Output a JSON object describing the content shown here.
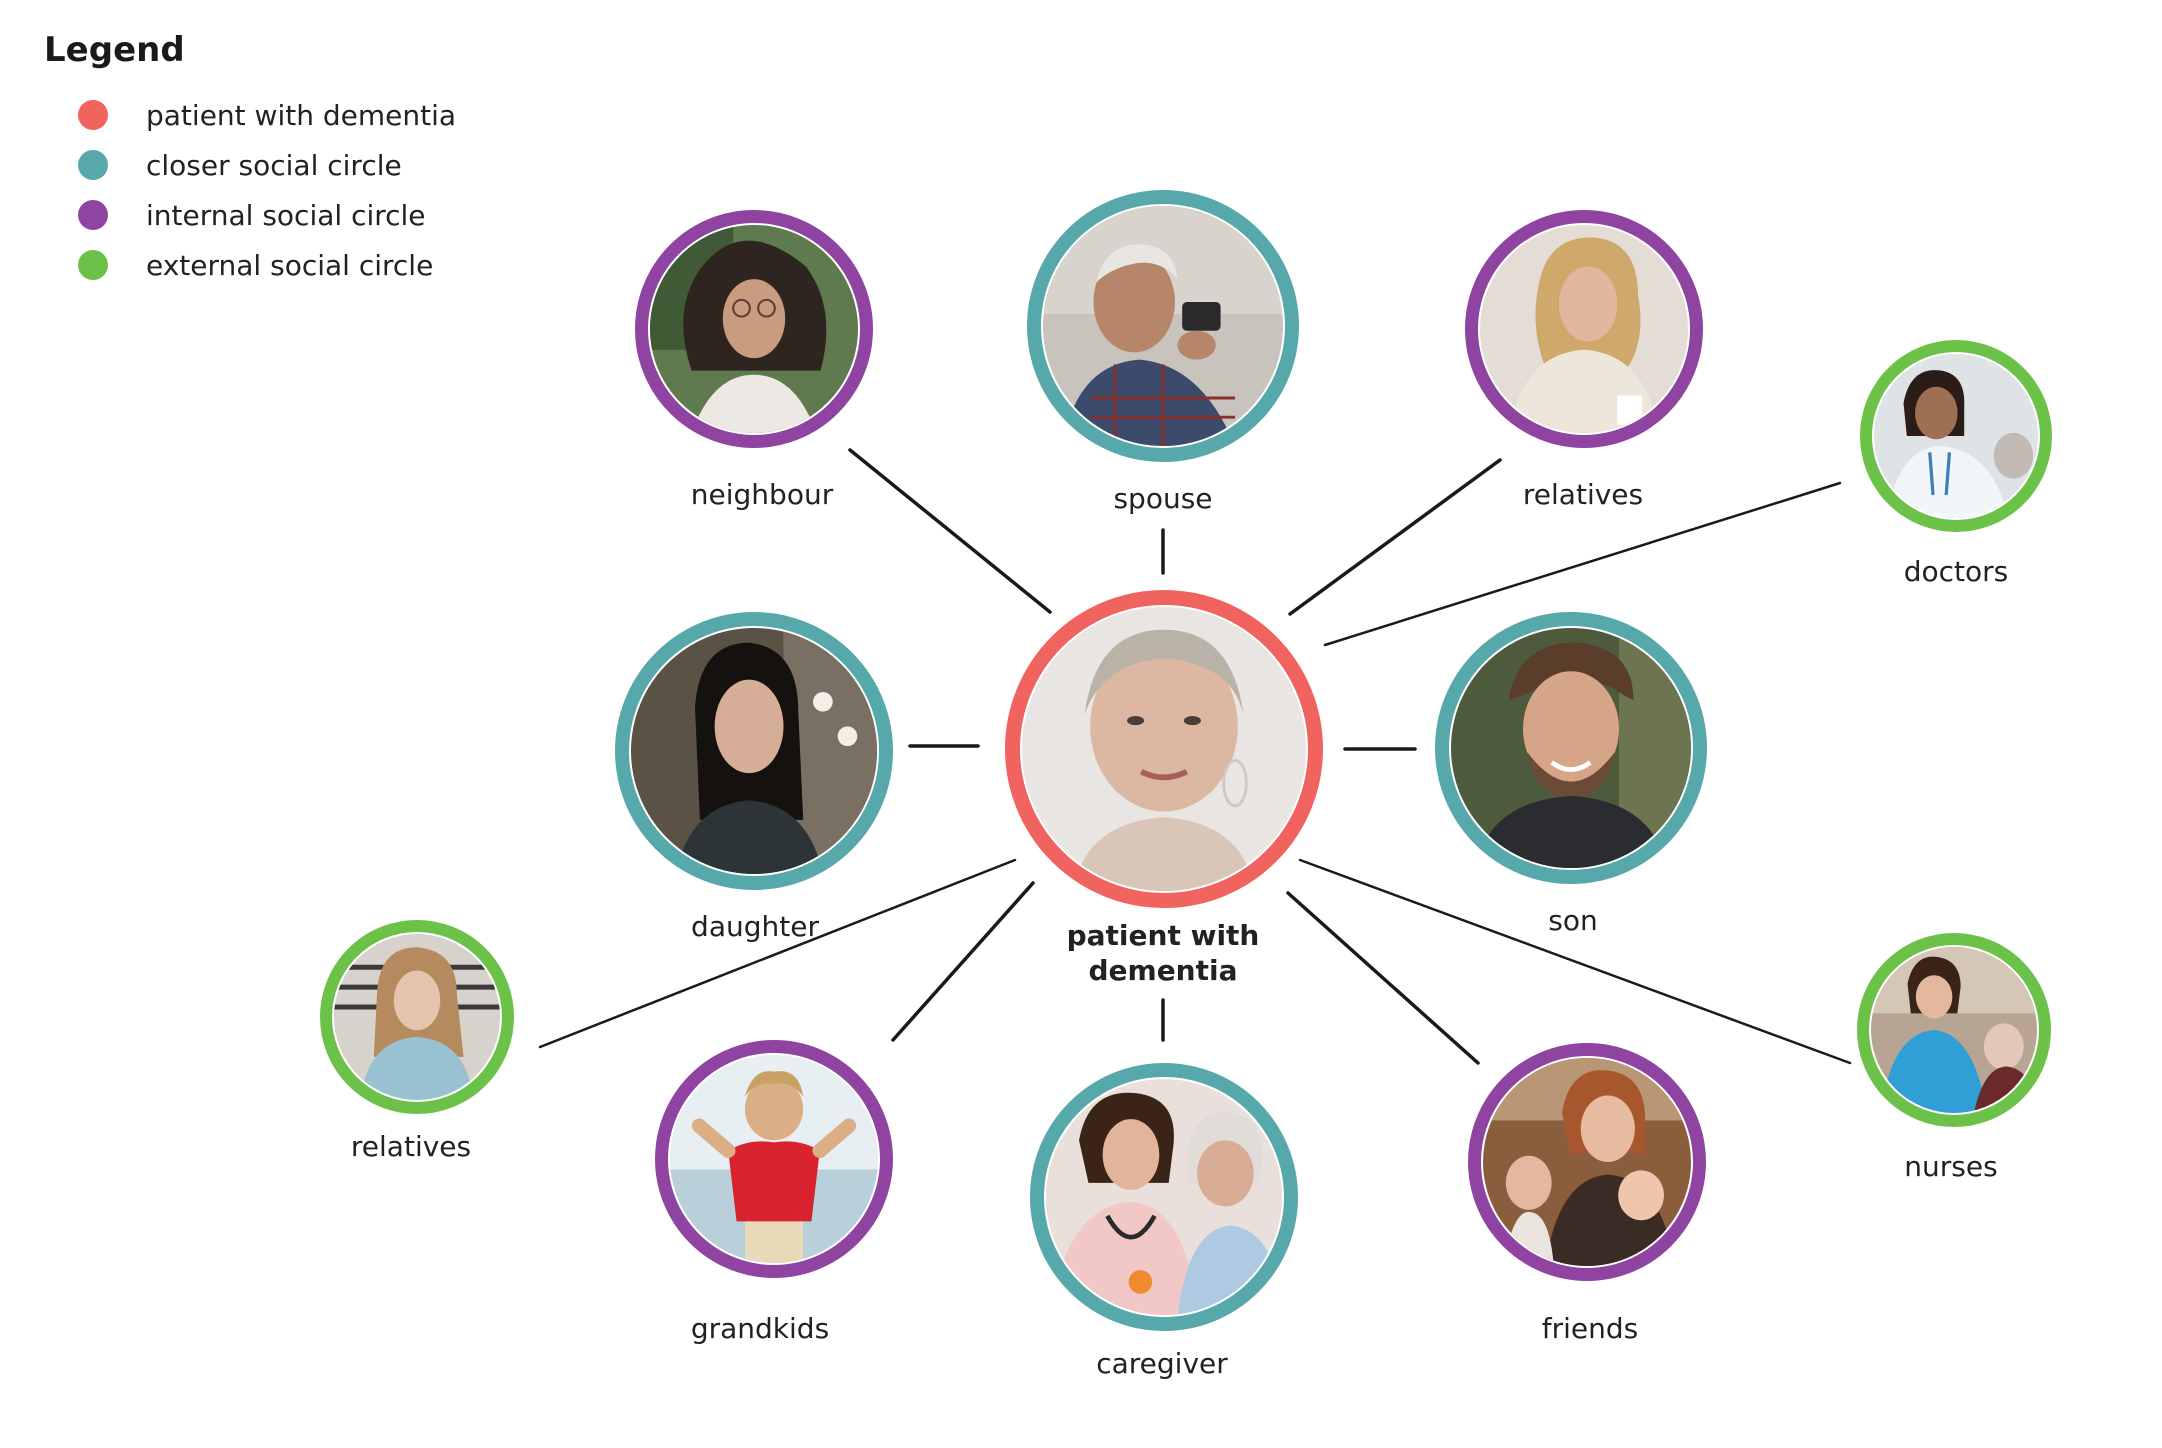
{
  "legend": {
    "title": "Legend",
    "items": [
      {
        "label": "patient with dementia",
        "color": "#f0635e"
      },
      {
        "label": "closer social circle",
        "color": "#57a8aa"
      },
      {
        "label": "internal social circle",
        "color": "#8e44a0"
      },
      {
        "label": "external social circle",
        "color": "#6cc149"
      }
    ]
  },
  "nodes": {
    "center": {
      "label": "patient with dementia",
      "circle": "patient with dementia"
    },
    "neighbour": {
      "label": "neighbour",
      "circle": "internal social circle"
    },
    "spouse": {
      "label": "spouse",
      "circle": "closer social circle"
    },
    "relatives_top": {
      "label": "relatives",
      "circle": "internal social circle"
    },
    "doctors": {
      "label": "doctors",
      "circle": "external social circle"
    },
    "daughter": {
      "label": "daughter",
      "circle": "closer social circle"
    },
    "son": {
      "label": "son",
      "circle": "closer social circle"
    },
    "relatives_left": {
      "label": "relatives",
      "circle": "external social circle"
    },
    "grandkids": {
      "label": "grandkids",
      "circle": "internal social circle"
    },
    "caregiver": {
      "label": "caregiver",
      "circle": "closer social circle"
    },
    "friends": {
      "label": "friends",
      "circle": "internal social circle"
    },
    "nurses": {
      "label": "nurses",
      "circle": "external social circle"
    }
  },
  "colors": {
    "patient": "#f0635e",
    "closer": "#57a8aa",
    "internal": "#8e44a0",
    "external": "#6cc149",
    "line": "#1a1a1a"
  }
}
